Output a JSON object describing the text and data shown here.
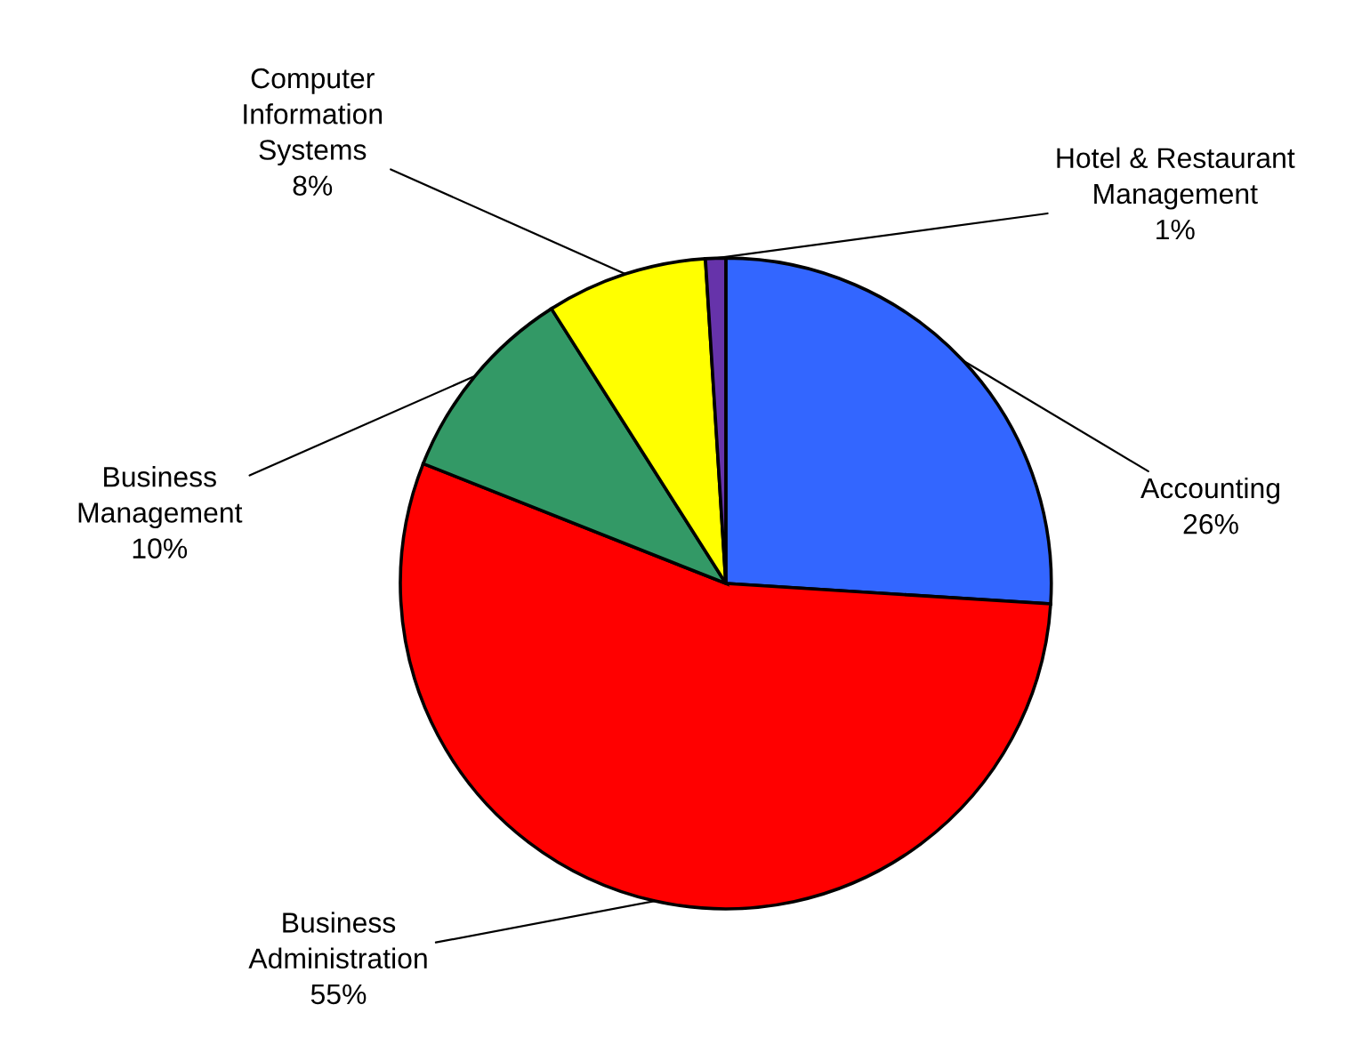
{
  "chart_data": {
    "type": "pie",
    "categories": [
      "Accounting",
      "Business\nAdministration",
      "Business\nManagement",
      "Computer\nInformation\nSystems",
      "Hotel & Restaurant\nManagement"
    ],
    "values": [
      26,
      55,
      10,
      8,
      1
    ],
    "colors": [
      "#3366ff",
      "#ff0000",
      "#339966",
      "#ffff00",
      "#6633aa"
    ],
    "value_labels": [
      "26%",
      "55%",
      "10%",
      "8%",
      "1%"
    ],
    "legend": false
  }
}
